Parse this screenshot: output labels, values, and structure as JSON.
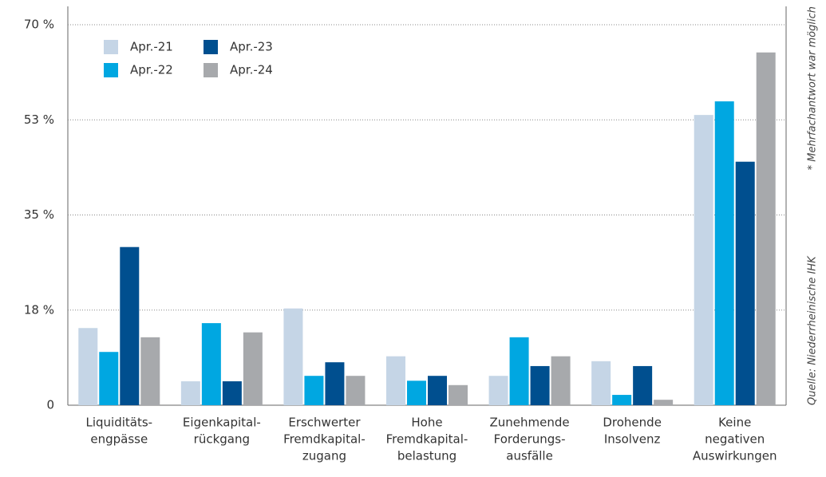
{
  "chart_data": {
    "type": "bar",
    "categories": [
      [
        "Liquiditäts-",
        "engpässe"
      ],
      [
        "Eigenkapital-",
        "rückgang"
      ],
      [
        "Erschwerter",
        "Fremdkapital-",
        "zugang"
      ],
      [
        "Hohe",
        "Fremdkapital-",
        "belastung"
      ],
      [
        "Zunehmende",
        "Forderungs-",
        "ausfälle"
      ],
      [
        "Drohende",
        "Insolvenz"
      ],
      [
        "Keine",
        "negativen",
        "Auswirkungen"
      ]
    ],
    "series": [
      {
        "name": "Apr.-21",
        "color": "#c5d5e6",
        "values": [
          14.2,
          4.4,
          17.8,
          9.0,
          5.4,
          8.1,
          53.4
        ]
      },
      {
        "name": "Apr.-22",
        "color": "#00a7e1",
        "values": [
          9.8,
          15.1,
          5.4,
          4.5,
          12.5,
          1.9,
          55.9
        ]
      },
      {
        "name": "Apr.-23",
        "color": "#004f8f",
        "values": [
          29.1,
          4.4,
          7.9,
          5.4,
          7.2,
          7.2,
          44.8
        ]
      },
      {
        "name": "Apr.-24",
        "color": "#a7a9ac",
        "values": [
          12.5,
          13.4,
          5.4,
          3.7,
          9.0,
          1.0,
          64.9
        ]
      }
    ],
    "ylim": [
      0,
      70
    ],
    "yticks": [
      0,
      {
        "value": 17.5,
        "label": "18 %"
      },
      {
        "value": 35,
        "label": "35 %"
      },
      {
        "value": 52.5,
        "label": "53 %"
      },
      {
        "value": 70,
        "label": "70 %"
      }
    ],
    "grid": true,
    "legend": "upper left",
    "notes": [
      "* Mehrfachantwort war möglich",
      "Quelle: Niederrheinische IHK"
    ]
  }
}
